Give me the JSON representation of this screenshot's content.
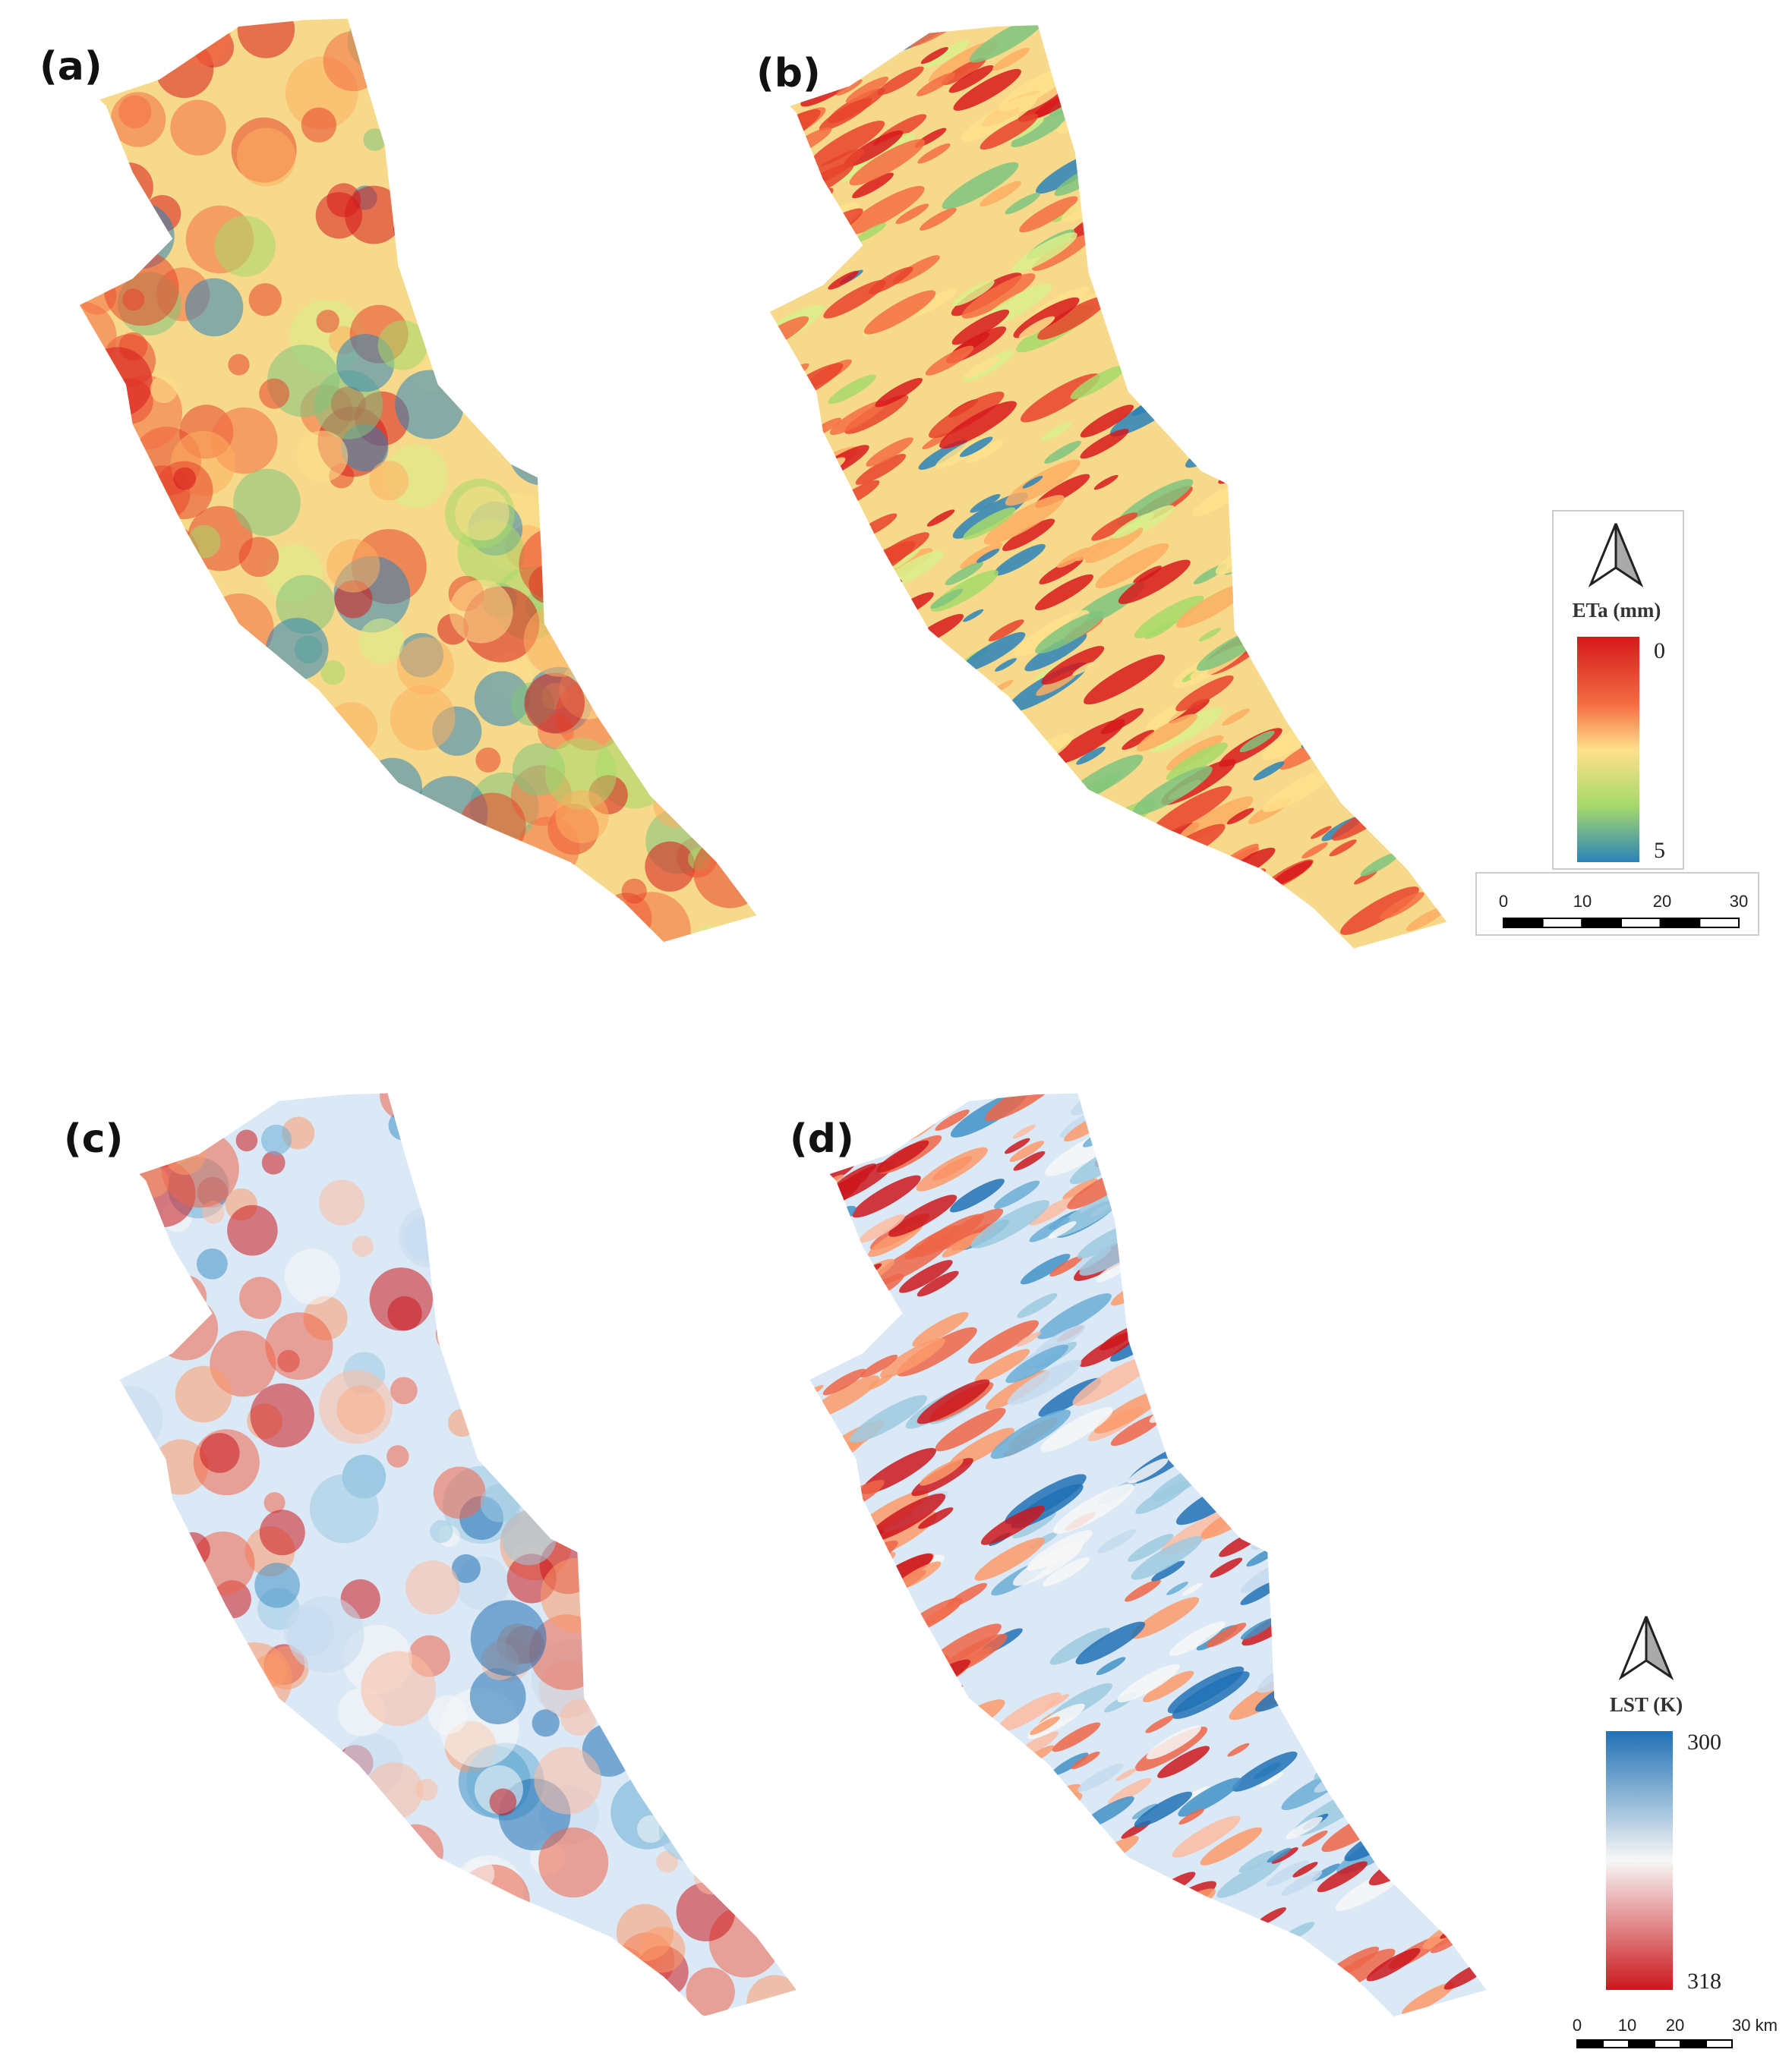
{
  "panels": [
    {
      "label": "(a)"
    },
    {
      "label": "(b)"
    },
    {
      "label": "(c)"
    },
    {
      "label": "(d)"
    }
  ],
  "legends": [
    {
      "title": "ETa (mm)",
      "top_label": "0",
      "bottom_label": "5",
      "scale_ticks": [
        "0",
        "10",
        "20",
        "30"
      ]
    },
    {
      "title": "LST (K)",
      "top_label": "300",
      "bottom_label": "318",
      "scale_ticks": [
        "0",
        "10",
        "20",
        "30 km"
      ]
    }
  ]
}
